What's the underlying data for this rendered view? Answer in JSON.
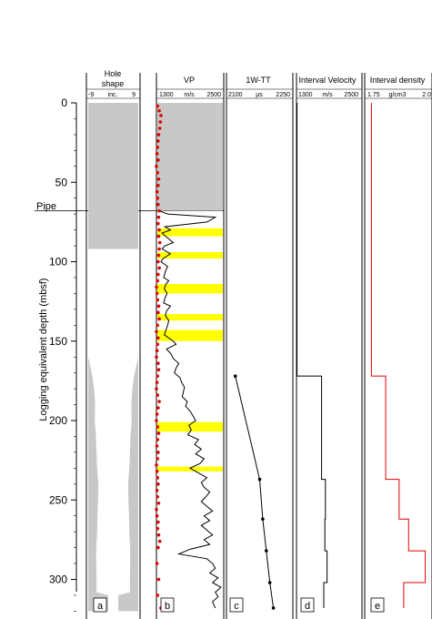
{
  "figure": {
    "ylabel": "Logging equivalent depth (mbsf)",
    "ylim": [
      0,
      320
    ],
    "yticks": [
      0,
      50,
      100,
      150,
      200,
      250,
      300
    ],
    "pipe_label": "Pipe",
    "pipe_depth": 68
  },
  "panels": {
    "a": {
      "title1": "Hole",
      "title2": "shape",
      "left": "-9",
      "mid": "inc.",
      "right": "9",
      "letter": "a"
    },
    "b": {
      "title": "VP",
      "left": "1300",
      "mid": "m/s",
      "right": "2500",
      "letter": "b"
    },
    "c": {
      "title": "1W-TT",
      "left": "2100",
      "mid": "µs",
      "right": "2250",
      "letter": "c"
    },
    "d": {
      "title": "Interval Velocity",
      "left": "1300",
      "mid": "m/s",
      "right": "2500",
      "letter": "d"
    },
    "e": {
      "title": "Interval density",
      "left": "1.75",
      "mid": "g/cm3",
      "right": "2.0",
      "letter": "e"
    }
  },
  "colors": {
    "gray_fill": "#c8c8c8",
    "highlight": "#ffff00",
    "vp_points": "#e00000",
    "density_line": "#e00000",
    "line": "#000000"
  },
  "chart_data": [
    {
      "panel": "a",
      "type": "area",
      "title": "Hole shape",
      "xlim": [
        -9,
        9
      ],
      "description_values": {
        "cased_fill_depth_range": [
          0,
          92
        ],
        "caliper_half_width": [
          [
            95,
            0.0
          ],
          [
            160,
            0.0
          ],
          [
            165,
            0.6
          ],
          [
            172,
            1.4
          ],
          [
            180,
            2.0
          ],
          [
            190,
            2.3
          ],
          [
            200,
            2.2
          ],
          [
            210,
            2.6
          ],
          [
            220,
            2.8
          ],
          [
            230,
            3.0
          ],
          [
            240,
            3.4
          ],
          [
            250,
            3.3
          ],
          [
            260,
            3.1
          ],
          [
            270,
            3.0
          ],
          [
            280,
            2.7
          ],
          [
            290,
            2.7
          ],
          [
            300,
            2.8
          ],
          [
            308,
            2.8
          ],
          [
            310,
            6.7
          ],
          [
            320,
            6.7
          ]
        ]
      }
    },
    {
      "panel": "b",
      "type": "line",
      "title": "VP",
      "xlim": [
        1300,
        2500
      ],
      "highlight_depths": [
        [
          79,
          84
        ],
        [
          94,
          98
        ],
        [
          114,
          120
        ],
        [
          133,
          137
        ],
        [
          143,
          150
        ],
        [
          201,
          207
        ],
        [
          229,
          232
        ]
      ],
      "vp_points_x": [
        1320,
        1350,
        1380,
        1370,
        1360,
        1340,
        1330,
        1320,
        1310,
        1330,
        1300,
        1320,
        1340,
        1330,
        1310,
        1320,
        1330,
        1350,
        1340,
        1330,
        1350,
        1340,
        1360,
        1350,
        1340,
        1330,
        1350,
        1330,
        1320,
        1300,
        1310,
        1320,
        1340,
        1330,
        1350,
        1320,
        1300,
        1330,
        1320,
        1310,
        1300,
        1330,
        1340,
        1320,
        1310,
        1300,
        1320,
        1350,
        1330,
        1310,
        1300,
        1320,
        1340,
        1320,
        1310,
        1330,
        1320,
        1300,
        1310,
        1320,
        1330,
        1310,
        1320,
        1340,
        1300,
        1310,
        1330,
        1320,
        1340,
        1360,
        1330,
        1310,
        1340,
        1320,
        1380
      ],
      "vp_points_y": [
        2,
        5,
        8,
        12,
        16,
        20,
        24,
        28,
        32,
        36,
        40,
        44,
        48,
        52,
        56,
        60,
        64,
        68,
        72,
        76,
        80,
        84,
        88,
        92,
        96,
        100,
        104,
        108,
        112,
        116,
        120,
        124,
        128,
        132,
        136,
        140,
        144,
        148,
        152,
        156,
        160,
        164,
        168,
        172,
        176,
        180,
        184,
        188,
        192,
        196,
        200,
        204,
        208,
        212,
        216,
        220,
        224,
        228,
        232,
        236,
        240,
        244,
        248,
        252,
        256,
        260,
        264,
        268,
        272,
        276,
        280,
        290,
        300,
        310,
        318
      ],
      "log_depth": [
        68,
        70,
        72,
        75,
        78,
        80,
        82,
        85,
        88,
        90,
        92,
        95,
        98,
        100,
        103,
        106,
        110,
        112,
        114,
        117,
        120,
        123,
        126,
        128,
        131,
        134,
        137,
        140,
        143,
        146,
        150,
        152,
        155,
        158,
        161,
        164,
        167,
        170,
        173,
        176,
        179,
        182,
        185,
        188,
        191,
        194,
        197,
        200,
        203,
        206,
        209,
        212,
        215,
        218,
        221,
        224,
        227,
        230,
        233,
        236,
        239,
        242,
        245,
        248,
        251,
        254,
        257,
        260,
        263,
        266,
        269,
        272,
        275,
        278,
        281,
        284,
        287,
        290,
        293,
        296,
        299,
        302,
        305,
        308,
        311,
        314,
        318
      ],
      "log_vp": [
        1350,
        1500,
        2350,
        2200,
        1450,
        1550,
        1400,
        1500,
        1600,
        1450,
        1400,
        1550,
        1420,
        1380,
        1500,
        1460,
        1430,
        1520,
        1470,
        1440,
        1490,
        1450,
        1430,
        1550,
        1480,
        1460,
        1520,
        1500,
        1470,
        1440,
        1600,
        1650,
        1480,
        1560,
        1600,
        1700,
        1650,
        1620,
        1720,
        1750,
        1800,
        1780,
        1760,
        1850,
        1820,
        1900,
        1950,
        2000,
        1880,
        1920,
        1860,
        2050,
        1980,
        2100,
        2000,
        2150,
        2080,
        1900,
        2050,
        2200,
        2100,
        2150,
        2250,
        2180,
        2100,
        2200,
        2300,
        2150,
        2250,
        2100,
        2200,
        2300,
        2150,
        2250,
        1900,
        1700,
        2200,
        2300,
        2350,
        2250,
        2400,
        2300,
        2450,
        2350,
        2400,
        2300,
        2350
      ]
    },
    {
      "panel": "c",
      "type": "line",
      "title": "1W-TT",
      "xlim": [
        2100,
        2250
      ],
      "x": [
        2120,
        2175,
        2182,
        2190,
        2198,
        2206
      ],
      "y": [
        172,
        237,
        262,
        282,
        302,
        318
      ]
    },
    {
      "panel": "d",
      "type": "line",
      "title": "Interval Velocity",
      "xlim": [
        1300,
        2500
      ],
      "steps": [
        [
          0,
          172,
          1310
        ],
        [
          172,
          237,
          1760
        ],
        [
          237,
          262,
          1830
        ],
        [
          262,
          282,
          1820
        ],
        [
          282,
          302,
          1860
        ],
        [
          302,
          318,
          1800
        ]
      ]
    },
    {
      "panel": "e",
      "type": "line",
      "title": "Interval density",
      "xlim": [
        1.75,
        2.0
      ],
      "steps": [
        [
          0,
          172,
          1.775
        ],
        [
          172,
          237,
          1.828
        ],
        [
          237,
          262,
          1.878
        ],
        [
          262,
          282,
          1.913
        ],
        [
          282,
          302,
          1.975
        ],
        [
          302,
          318,
          1.895
        ]
      ]
    }
  ]
}
